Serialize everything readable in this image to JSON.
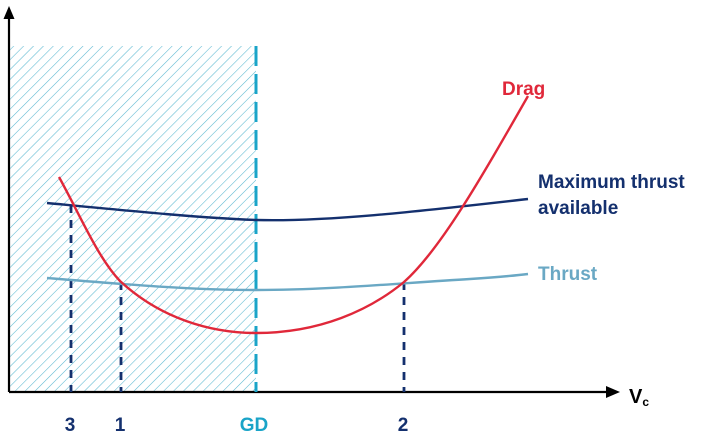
{
  "colors": {
    "axis": "#000000",
    "drag": "#e0283a",
    "max_thrust": "#14306e",
    "thrust": "#6aa8c4",
    "gd_line": "#1aa4c8",
    "hatch": "#5ab8d0",
    "dashed_markers": "#14306e"
  },
  "labels": {
    "drag": "Drag",
    "max_thrust_line1": "Maximum thrust",
    "max_thrust_line2": "available",
    "thrust": "Thrust",
    "x_axis": "V",
    "x_axis_sub": "c",
    "point_3": "3",
    "point_1": "1",
    "point_gd": "GD",
    "point_2": "2"
  }
}
